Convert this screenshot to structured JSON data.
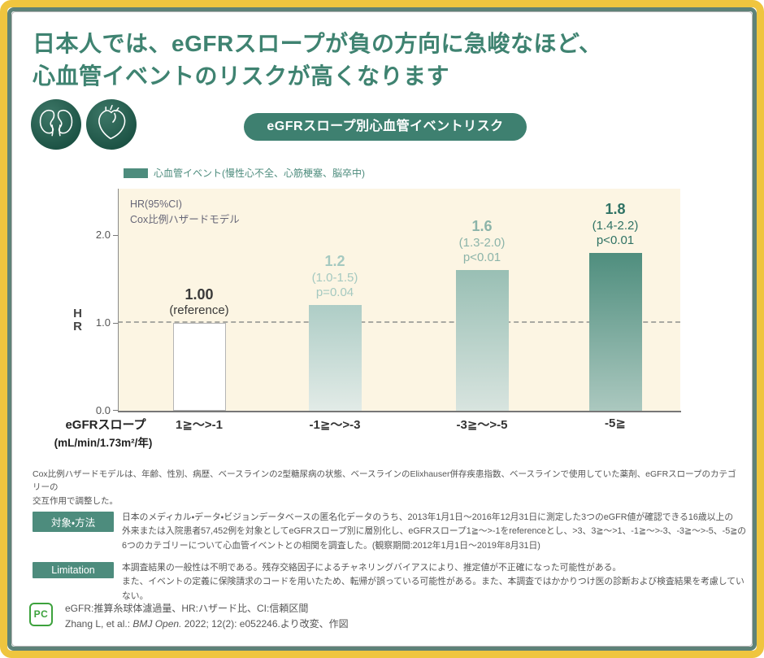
{
  "title": "日本人では、eGFRスロープが負の方向に急峻なほど、\n心血管イベントのリスクが高くなります",
  "badge": "eGFRスロープ別心血管イベントリスク",
  "legend": {
    "label": "心血管イベント(慢性心不全、心筋梗塞、脳卒中)",
    "color": "#4d8c7d"
  },
  "axis": {
    "ylabel": "HR",
    "yticks": [
      "2.0",
      "1.0",
      "0.0"
    ],
    "xtitle_line1": "eGFRスロープ",
    "xtitle_line2": "(mL/min/1.73m²/年)"
  },
  "chart_data": {
    "type": "bar",
    "title": "eGFRスロープ別心血管イベントリスク",
    "xlabel": "eGFRスロープ (mL/min/1.73m²/年)",
    "ylabel": "HR",
    "ylim": [
      0,
      2.5
    ],
    "yticks": [
      0.0,
      1.0,
      2.0
    ],
    "reference_line": 1.0,
    "grid": false,
    "legend_position": "top-left",
    "annotation": "HR(95%CI)\nCox比例ハザードモデル",
    "categories": [
      "1≧〜>-1",
      "-1≧〜>-3",
      "-3≧〜>-5",
      "-5≧"
    ],
    "values": [
      1.0,
      1.2,
      1.6,
      1.8
    ],
    "series": [
      {
        "name": "心血管イベント(慢性心不全、心筋梗塞、脳卒中)",
        "values": [
          1.0,
          1.2,
          1.6,
          1.8
        ]
      }
    ],
    "bars": [
      {
        "hr": "1.00",
        "ci": "(reference)",
        "p": "",
        "value": 1.0,
        "label_color": "#3a3a3a",
        "fill_top": "#ffffff",
        "fill_bottom": "#ffffff",
        "border": "#b5b5b5"
      },
      {
        "hr": "1.2",
        "ci": "(1.0-1.5)",
        "p": "p=0.04",
        "value": 1.2,
        "label_color": "#a5c9c0",
        "fill_top": "#aecdc6",
        "fill_bottom": "#e2ebe7",
        "border": "none"
      },
      {
        "hr": "1.6",
        "ci": "(1.3-2.0)",
        "p": "p<0.01",
        "value": 1.6,
        "label_color": "#8cb4a9",
        "fill_top": "#99bfb4",
        "fill_bottom": "#d8e4df",
        "border": "none"
      },
      {
        "hr": "1.8",
        "ci": "(1.4-2.2)",
        "p": "p<0.01",
        "value": 1.8,
        "label_color": "#2f7264",
        "fill_top": "#4f8e7e",
        "fill_bottom": "#abc8bf",
        "border": "none"
      }
    ]
  },
  "footnote": "Cox比例ハザードモデルは、年齢、性別、病歴、ベースラインの2型糖尿病の状態、ベースラインのElixhauser併存疾患指数、ベースラインで使用していた薬剤、eGFRスロープのカテゴリーの\n交互作用で調整した。",
  "methods": {
    "badge": "対象・方法",
    "text": "日本のメディカル・データ・ビジョンデータベースの匿名化データのうち、2013年1月1日〜2016年12月31日に測定した3つのeGFR値が確認できる16歳以上の\n外来または入院患者57,452例を対象としてeGFRスロープ別に層別化し、eGFRスロープ1≧〜>-1をreferenceとし、>3、3≧〜>1、-1≧〜>-3、-3≧〜>-5、-5≧の\n6つのカテゴリーについて心血管イベントとの相関を調査した。(観察期間:2012年1月1日〜2019年8月31日)"
  },
  "limitation": {
    "badge": "Limitation",
    "text": "本調査結果の一般性は不明である。残存交絡因子によるチャネリングバイアスにより、推定値が不正確になった可能性がある。\nまた、イベントの定義に保険請求のコードを用いたため、転帰が誤っている可能性がある。また、本調査ではかかりつけ医の診断および検査結果を考慮していない。"
  },
  "footer": {
    "logo_text": "PC",
    "abbrev": "eGFR:推算糸球体濾過量、HR:ハザード比、CI:信頼区間",
    "citation_prefix": "Zhang L, et al.: ",
    "citation_journal": "BMJ Open.",
    "citation_suffix": " 2022; 12(2): e052246.より改変、作図"
  },
  "colors": {
    "frame_yellow": "#efc53f",
    "frame_teal": "#5e8278",
    "title_teal": "#3f8371",
    "badge_teal": "#3e8070",
    "section_badge_teal": "#4d8c7d",
    "plot_background": "#fcf5e3",
    "logo_green": "#3da23d"
  }
}
